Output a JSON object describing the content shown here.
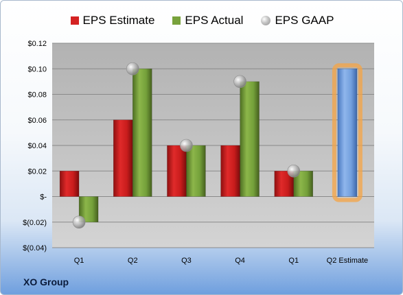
{
  "company": "XO Group",
  "legend": [
    {
      "label": "EPS Estimate",
      "color": "#d42222"
    },
    {
      "label": "EPS Actual",
      "color": "#78a23c"
    },
    {
      "label": "EPS GAAP",
      "color": "#a0a0a0"
    }
  ],
  "chart_data": {
    "type": "bar",
    "categories": [
      "Q1",
      "Q2",
      "Q3",
      "Q4",
      "Q1",
      "Q2 Estimate"
    ],
    "series": [
      {
        "name": "EPS Estimate",
        "values": [
          0.02,
          0.06,
          0.04,
          0.04,
          0.02,
          null
        ]
      },
      {
        "name": "EPS Actual",
        "values": [
          -0.02,
          0.1,
          0.04,
          0.09,
          0.02,
          null
        ]
      },
      {
        "name": "EPS GAAP",
        "values": [
          -0.02,
          0.1,
          0.04,
          0.09,
          0.02,
          null
        ]
      }
    ],
    "forecast": {
      "category": "Q2 Estimate",
      "value": 0.1,
      "color": "#7fa8e0",
      "highlight": "#f6a444"
    },
    "ylim": [
      -0.04,
      0.12
    ],
    "yticks": [
      -0.04,
      -0.02,
      0,
      0.02,
      0.04,
      0.06,
      0.08,
      0.1,
      0.12
    ],
    "ytick_labels": [
      "$(0.04)",
      "$(0.02)",
      "$-",
      "$0.02",
      "$0.04",
      "$0.06",
      "$0.08",
      "$0.10",
      "$0.12"
    ],
    "grid": true,
    "legend_position": "top"
  }
}
